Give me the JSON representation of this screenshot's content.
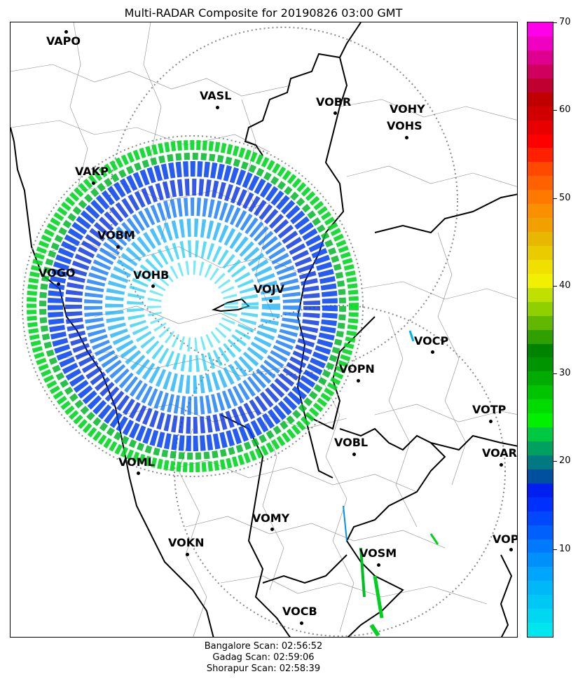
{
  "title": "Multi-RADAR Composite for 20190826 03:00 GMT",
  "map": {
    "stations": [
      {
        "code": "VAPO"
      },
      {
        "code": "VASL"
      },
      {
        "code": "VOBR"
      },
      {
        "code": "VOHY"
      },
      {
        "code": "VOHS"
      },
      {
        "code": "VAKP"
      },
      {
        "code": "VOBM"
      },
      {
        "code": "VOGO"
      },
      {
        "code": "VOHB"
      },
      {
        "code": "VOJV"
      },
      {
        "code": "VOCP"
      },
      {
        "code": "VOPN"
      },
      {
        "code": "VOTP"
      },
      {
        "code": "VOBL"
      },
      {
        "code": "VOAR"
      },
      {
        "code": "VOML"
      },
      {
        "code": "VOMY"
      },
      {
        "code": "VOKN"
      },
      {
        "code": "VOPC"
      },
      {
        "code": "VOSM"
      },
      {
        "code": "VOCB"
      }
    ]
  },
  "colorbar": {
    "min": 0,
    "max": 70,
    "ticks": [
      "10",
      "20",
      "30",
      "40",
      "50",
      "60",
      "70"
    ],
    "colors": [
      "#00e6ef",
      "#00d8f2",
      "#00c8f5",
      "#00b8f8",
      "#00a6fb",
      "#0090fc",
      "#007afc",
      "#0060fc",
      "#0048fc",
      "#0030fc",
      "#0020f0",
      "#0050a0",
      "#007a80",
      "#00a060",
      "#00c840",
      "#00f000",
      "#00dc00",
      "#00c400",
      "#00ac00",
      "#009400",
      "#008400",
      "#30a000",
      "#60b800",
      "#90d000",
      "#c0e000",
      "#f0f000",
      "#f0e000",
      "#e8cc00",
      "#e8b800",
      "#f0a000",
      "#f89000",
      "#ff7800",
      "#ff6000",
      "#ff4800",
      "#ff2000",
      "#ff0000",
      "#e80000",
      "#d00000",
      "#c00000",
      "#c00030",
      "#d00060",
      "#e00090",
      "#f000c0",
      "#ff00e8"
    ]
  },
  "footer": {
    "line1": "Bangalore Scan: 02:56:52",
    "line2": "Gadag Scan: 02:59:06",
    "line3": "Shorapur Scan: 02:58:39"
  }
}
